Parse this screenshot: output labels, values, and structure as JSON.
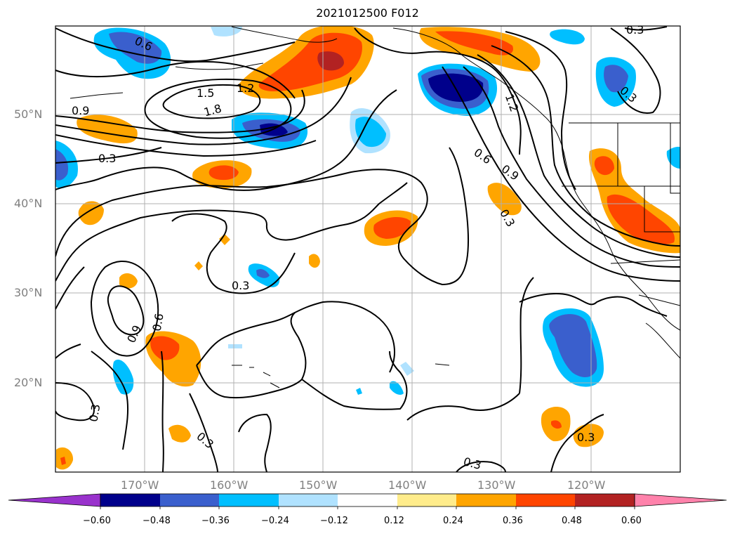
{
  "title": "2021012500 F012",
  "lat_labels": [
    "50°N",
    "40°N",
    "30°N",
    "20°N"
  ],
  "lon_labels": [
    "170°W",
    "160°W",
    "150°W",
    "140°W",
    "130°W",
    "120°W"
  ],
  "contour_labels": [
    "0.6",
    "1.5",
    "1.2",
    "1.8",
    "0.9",
    "0.3",
    "0.6",
    "0.9",
    "0.3",
    "0.3",
    "0.9",
    "0.6",
    "0.3",
    "0.3",
    "0.3",
    "0.3",
    "0.3",
    "1.2",
    "0.3"
  ],
  "colorbar": {
    "ticks": [
      "−0.60",
      "−0.48",
      "−0.36",
      "−0.24",
      "−0.12",
      "0.12",
      "0.24",
      "0.36",
      "0.48",
      "0.60"
    ],
    "colors": [
      "#9932cc",
      "#00008b",
      "#3a5fcd",
      "#00bfff",
      "#b0e2ff",
      "#ffffff",
      "#ffec8b",
      "#ffa500",
      "#ff4500",
      "#b22222",
      "#ff82ab"
    ]
  },
  "colors": {
    "grid": "#b0b0b0",
    "contour": "#000000",
    "axis_label": "#808080"
  },
  "chart_data": {
    "type": "map",
    "title": "2021012500 F012",
    "extent": {
      "lon": [
        -180,
        -110
      ],
      "lat": [
        10,
        60
      ]
    },
    "levels": [
      -0.6,
      -0.48,
      -0.36,
      -0.24,
      -0.12,
      0.12,
      0.24,
      0.36,
      0.48,
      0.6
    ],
    "contour_levels": [
      0.3,
      0.6,
      0.9,
      1.2,
      1.5,
      1.8
    ],
    "grid": true,
    "colorbar": "bottom, extended both ends"
  }
}
